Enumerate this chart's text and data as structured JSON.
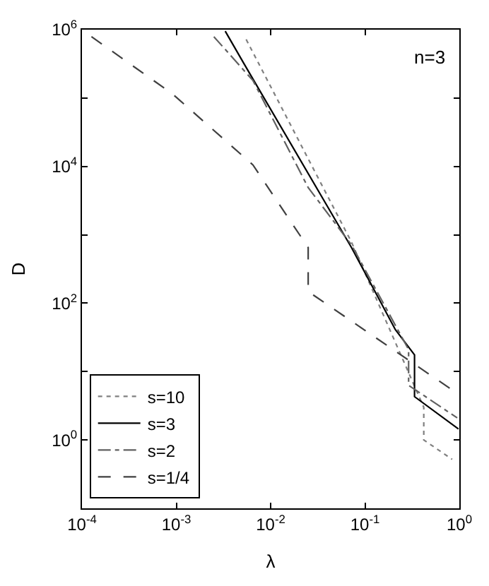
{
  "chart_data": {
    "type": "line",
    "xlabel": "λ",
    "ylabel": "D",
    "log": "xy",
    "legend": "bottom left",
    "marker": "none",
    "xlim": [
      0.0001,
      1
    ],
    "ylim": [
      0.1,
      1000000
    ],
    "xticks": [
      {
        "value": 0.0001,
        "label": "10$^{-4}$"
      },
      {
        "value": 0.001,
        "label": "10$^{-3}$"
      },
      {
        "value": 0.01,
        "label": "10$^{-2}$"
      },
      {
        "value": 0.1,
        "label": "10$^{-1}$"
      },
      {
        "value": 1,
        "label": "10$^{0}$"
      }
    ],
    "yticks": [
      {
        "value": 1,
        "label": "10$^{0}$"
      },
      {
        "value": 10,
        "label": null
      },
      {
        "value": 100,
        "label": "10$^{2}$"
      },
      {
        "value": 1000,
        "label": null
      },
      {
        "value": 10000,
        "label": "10$^{4}$"
      },
      {
        "value": 100000,
        "label": null
      },
      {
        "value": 1000000,
        "label": "10$^{6}$"
      }
    ],
    "annotations": [
      "n=3"
    ],
    "series": [
      {
        "name": "s=10",
        "color": "#808080",
        "line_style": "dotted",
        "x": [
          0.0055,
          0.072,
          0.42,
          0.42,
          0.84
        ],
        "values": [
          720000,
          780,
          3.0,
          1.0,
          0.52
        ]
      },
      {
        "name": "s=3",
        "color": "#000000",
        "line_style": "solid",
        "x": [
          0.0033,
          0.0052,
          0.072,
          0.21,
          0.335,
          0.335,
          0.98
        ],
        "values": [
          950000,
          320000,
          650,
          41,
          17.6,
          4.3,
          1.45
        ]
      },
      {
        "name": "s=2",
        "color": "#606060",
        "line_style": "dashdot",
        "x": [
          0.0025,
          0.0065,
          0.025,
          0.072,
          0.29,
          0.29,
          0.95
        ],
        "values": [
          790000,
          180000,
          4900,
          710,
          21,
          6.3,
          2.1
        ]
      },
      {
        "name": "s=1/4",
        "color": "#404040",
        "line_style": "dashed",
        "x": [
          0.000126,
          0.00091,
          0.0065,
          0.025,
          0.025,
          0.95
        ],
        "values": [
          790000,
          115000,
          10500,
          650,
          148,
          4.8
        ]
      }
    ]
  }
}
